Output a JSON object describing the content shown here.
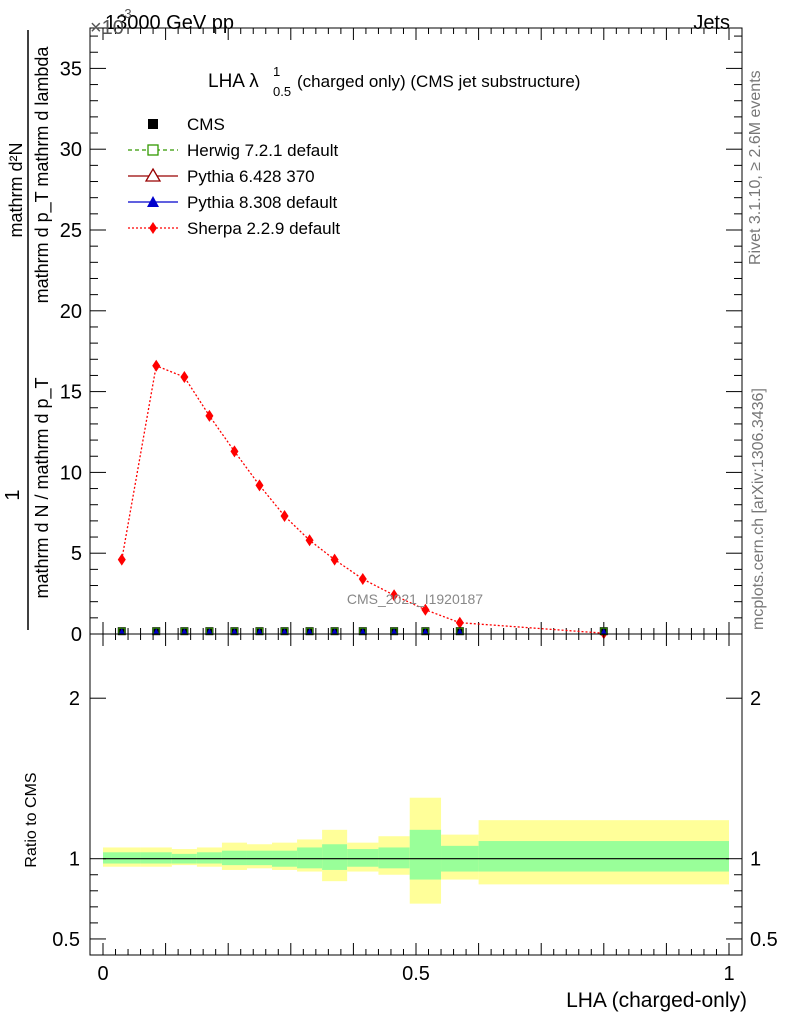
{
  "header": {
    "energy_label": "13000 GeV pp",
    "exponent_label": "×10",
    "exponent_power": "-3",
    "category": "Jets",
    "side_label_top": "Rivet 3.1.10, ≥ 2.6M events",
    "side_label_bottom": "mcplots.cern.ch [arXiv:1306.3436]",
    "watermark": "CMS_2021_I1920187"
  },
  "title": {
    "main": "LHA λ",
    "superscript": "1",
    "subscript": "0.5",
    "rest": " (charged only) (CMS jet substructure)"
  },
  "main_ylabel": {
    "numerator": "mathrm d²N",
    "denominator": "mathrm d p_T mathrm d lambda",
    "prefix_num": "1",
    "prefix_den": "mathrm d N / mathrm d p_T"
  },
  "ratio_ylabel": "Ratio to CMS",
  "xlabel": "LHA (charged-only)",
  "colors": {
    "sherpa": "#ff0000",
    "herwig": "#339900",
    "pythia6": "#990000",
    "pythia8": "#0000cc",
    "band_inner": "#99ff99",
    "band_outer": "#ffff99"
  },
  "legend": [
    {
      "label": "CMS",
      "key": "cms"
    },
    {
      "label": "Herwig 7.2.1 default",
      "key": "herwig"
    },
    {
      "label": "Pythia 6.428 370",
      "key": "pythia6"
    },
    {
      "label": "Pythia 8.308 default",
      "key": "pythia8"
    },
    {
      "label": "Sherpa 2.2.9 default",
      "key": "sherpa"
    }
  ],
  "chart_data": {
    "type": "line",
    "x_range": [
      0,
      1
    ],
    "main_y_range": [
      0,
      37.5
    ],
    "main_y_scale_note": "values ×10^-3",
    "main_y_ticks": [
      0,
      5,
      10,
      15,
      20,
      25,
      30,
      35
    ],
    "x_ticks": [
      0,
      0.5,
      1
    ],
    "x_tick_labels": [
      "0",
      "0.5",
      "1"
    ],
    "ratio_y_range": [
      0.4,
      2.4
    ],
    "ratio_y_ticks": [
      0.5,
      1,
      2
    ],
    "ratio_y_tick_labels": [
      "0.5",
      "1",
      "2"
    ],
    "series": [
      {
        "name": "Sherpa 2.2.9 default",
        "key": "sherpa",
        "x": [
          0.03,
          0.085,
          0.13,
          0.17,
          0.21,
          0.25,
          0.29,
          0.33,
          0.37,
          0.415,
          0.465,
          0.515,
          0.57,
          0.8
        ],
        "y": [
          4.6,
          16.6,
          15.9,
          13.5,
          11.3,
          9.2,
          7.3,
          5.8,
          4.6,
          3.4,
          2.4,
          1.5,
          0.7,
          0.05
        ]
      },
      {
        "name": "CMS",
        "key": "cms",
        "x": [
          0.03,
          0.085,
          0.13,
          0.17,
          0.21,
          0.25,
          0.29,
          0.33,
          0.37,
          0.415,
          0.465,
          0.515,
          0.57,
          0.8
        ],
        "y": [
          0.05,
          0.05,
          0.05,
          0.05,
          0.05,
          0.05,
          0.05,
          0.05,
          0.05,
          0.05,
          0.05,
          0.05,
          0.05,
          0.05
        ]
      }
    ],
    "ratio_bands": [
      {
        "x0": 0.0,
        "x1": 0.06,
        "inner": [
          0.97,
          1.04
        ],
        "outer": [
          0.95,
          1.07
        ]
      },
      {
        "x0": 0.06,
        "x1": 0.11,
        "inner": [
          0.97,
          1.04
        ],
        "outer": [
          0.95,
          1.07
        ]
      },
      {
        "x0": 0.11,
        "x1": 0.15,
        "inner": [
          0.97,
          1.03
        ],
        "outer": [
          0.96,
          1.06
        ]
      },
      {
        "x0": 0.15,
        "x1": 0.19,
        "inner": [
          0.97,
          1.04
        ],
        "outer": [
          0.95,
          1.07
        ]
      },
      {
        "x0": 0.19,
        "x1": 0.23,
        "inner": [
          0.96,
          1.05
        ],
        "outer": [
          0.93,
          1.1
        ]
      },
      {
        "x0": 0.23,
        "x1": 0.27,
        "inner": [
          0.96,
          1.05
        ],
        "outer": [
          0.94,
          1.09
        ]
      },
      {
        "x0": 0.27,
        "x1": 0.31,
        "inner": [
          0.95,
          1.05
        ],
        "outer": [
          0.93,
          1.1
        ]
      },
      {
        "x0": 0.31,
        "x1": 0.35,
        "inner": [
          0.94,
          1.07
        ],
        "outer": [
          0.92,
          1.12
        ]
      },
      {
        "x0": 0.35,
        "x1": 0.39,
        "inner": [
          0.93,
          1.09
        ],
        "outer": [
          0.86,
          1.18
        ]
      },
      {
        "x0": 0.39,
        "x1": 0.44,
        "inner": [
          0.95,
          1.06
        ],
        "outer": [
          0.92,
          1.1
        ]
      },
      {
        "x0": 0.44,
        "x1": 0.49,
        "inner": [
          0.94,
          1.07
        ],
        "outer": [
          0.9,
          1.14
        ]
      },
      {
        "x0": 0.49,
        "x1": 0.54,
        "inner": [
          0.87,
          1.18
        ],
        "outer": [
          0.72,
          1.38
        ]
      },
      {
        "x0": 0.54,
        "x1": 0.6,
        "inner": [
          0.92,
          1.08
        ],
        "outer": [
          0.87,
          1.15
        ]
      },
      {
        "x0": 0.6,
        "x1": 1.0,
        "inner": [
          0.92,
          1.11
        ],
        "outer": [
          0.84,
          1.24
        ]
      }
    ],
    "ratio_reference": 1
  }
}
